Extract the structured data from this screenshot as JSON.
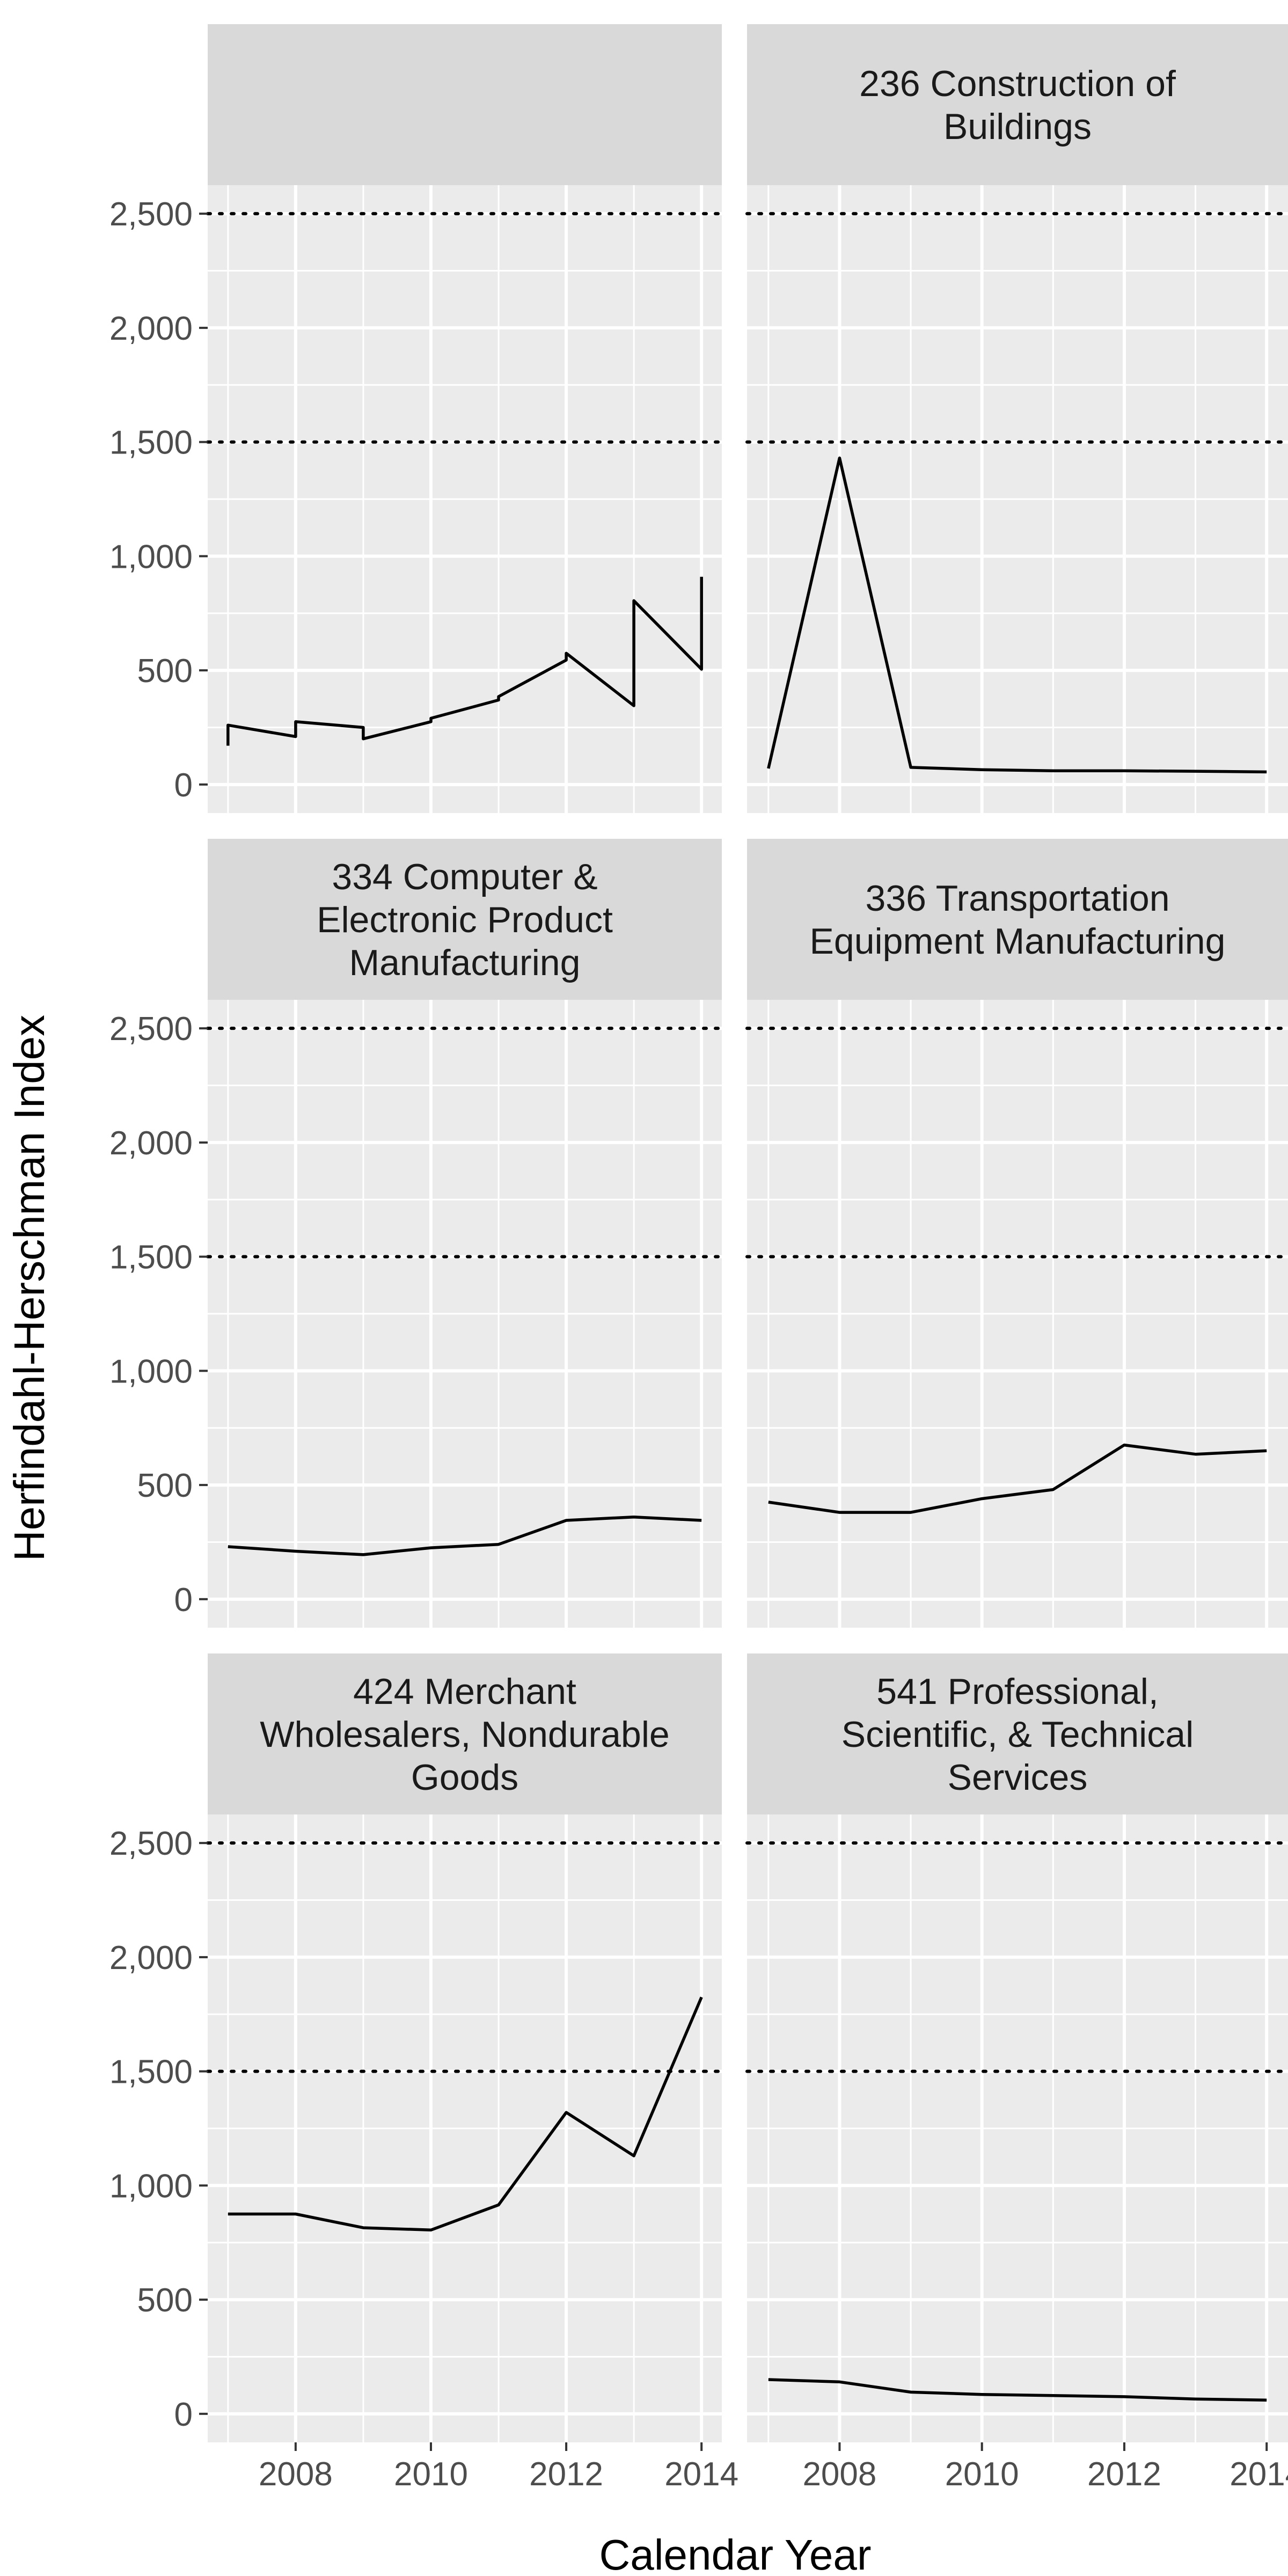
{
  "chart_data": {
    "type": "line",
    "xlabel": "Calendar Year",
    "ylabel": "Herfindahl-Herschman Index",
    "xlim": [
      2006.7,
      2014.3
    ],
    "ylim": [
      -125,
      2625
    ],
    "x_ticks": [
      2008,
      2010,
      2012,
      2014
    ],
    "x_tick_labels": [
      "2008",
      "2010",
      "2012",
      "2014"
    ],
    "y_ticks": [
      0,
      500,
      1000,
      1500,
      2000,
      2500
    ],
    "y_tick_labels": [
      "0",
      "500",
      "1,000",
      "1,500",
      "2,000",
      "2,500"
    ],
    "reference_lines": [
      1500,
      2500
    ],
    "grid": true,
    "panels": [
      {
        "title_lines": [],
        "x": [
          2007,
          2007,
          2008,
          2008,
          2009,
          2009,
          2010,
          2010,
          2011,
          2011,
          2012,
          2012,
          2013,
          2013,
          2014,
          2014
        ],
        "y": [
          170,
          260,
          210,
          275,
          250,
          200,
          275,
          290,
          370,
          385,
          545,
          575,
          345,
          805,
          505,
          910
        ]
      },
      {
        "title_lines": [
          "236 Construction of",
          "Buildings"
        ],
        "x": [
          2007,
          2008,
          2009,
          2010,
          2011,
          2012,
          2013,
          2014
        ],
        "y": [
          70,
          1430,
          75,
          65,
          60,
          60,
          58,
          55
        ]
      },
      {
        "title_lines": [
          "334 Computer &",
          "Electronic Product",
          "Manufacturing"
        ],
        "x": [
          2007,
          2008,
          2009,
          2010,
          2011,
          2012,
          2013,
          2014
        ],
        "y": [
          230,
          210,
          195,
          225,
          240,
          345,
          360,
          345
        ]
      },
      {
        "title_lines": [
          "336 Transportation",
          "Equipment Manufacturing"
        ],
        "x": [
          2007,
          2008,
          2009,
          2010,
          2011,
          2012,
          2013,
          2014
        ],
        "y": [
          425,
          380,
          380,
          440,
          480,
          675,
          635,
          650
        ]
      },
      {
        "title_lines": [
          "424 Merchant",
          "Wholesalers, Nondurable",
          "Goods"
        ],
        "x": [
          2007,
          2008,
          2009,
          2010,
          2011,
          2012,
          2013,
          2014
        ],
        "y": [
          875,
          875,
          815,
          805,
          915,
          1320,
          1130,
          1825
        ]
      },
      {
        "title_lines": [
          "541 Professional,",
          "Scientific, & Technical",
          "Services"
        ],
        "x": [
          2007,
          2008,
          2009,
          2010,
          2011,
          2012,
          2013,
          2014
        ],
        "y": [
          150,
          140,
          95,
          85,
          80,
          75,
          65,
          60
        ]
      }
    ]
  }
}
